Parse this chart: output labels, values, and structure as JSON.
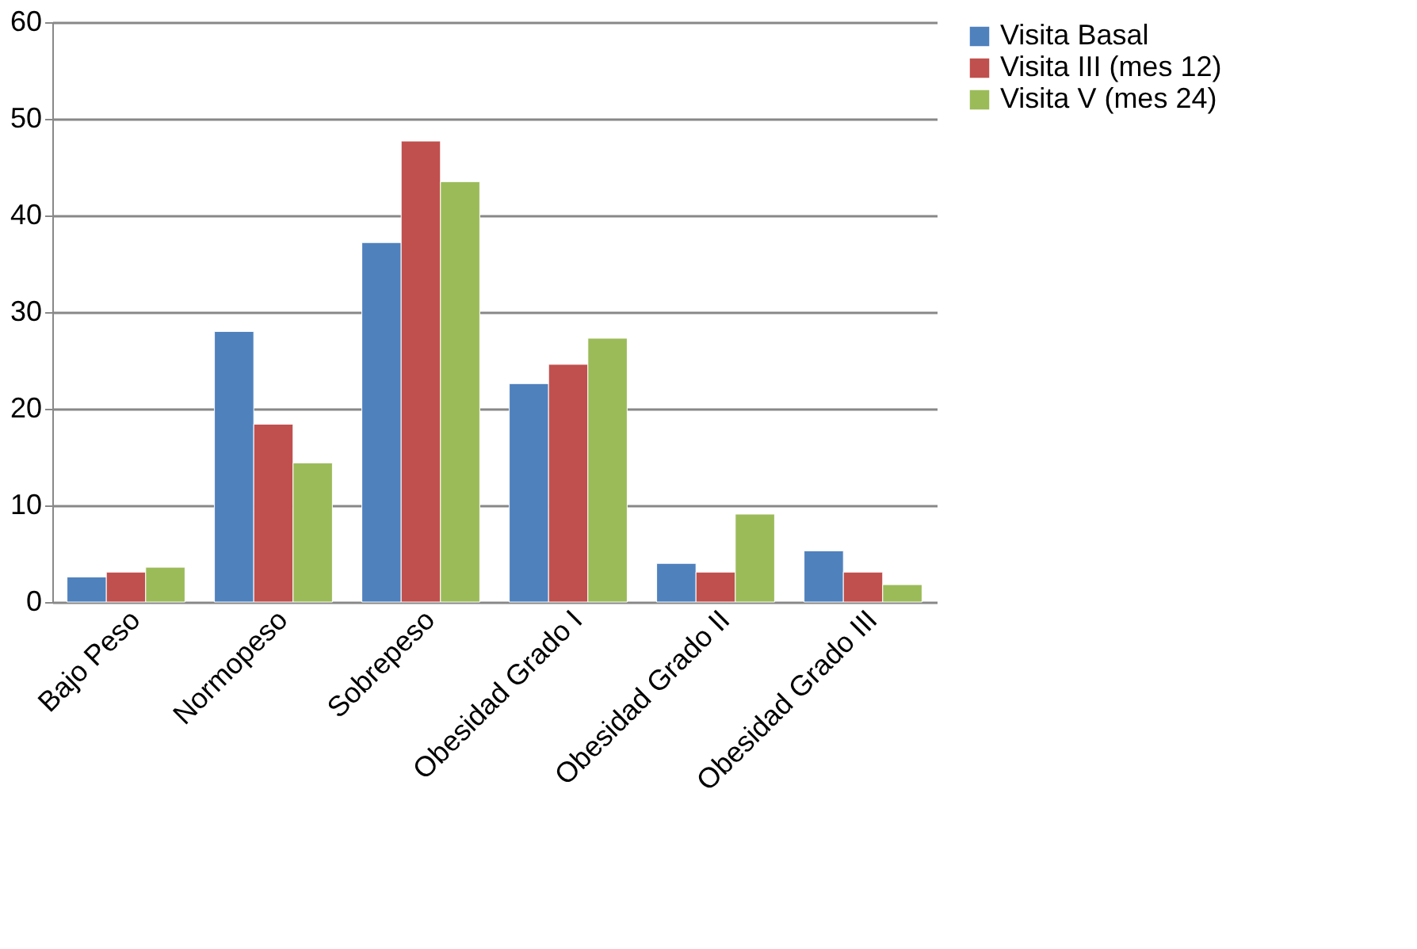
{
  "chart_data": {
    "type": "bar",
    "categories": [
      "Bajo Peso",
      "Normopeso",
      "Sobrepeso",
      "Obesidad Grado I",
      "Obesidad Grado II",
      "Obesidad Grado III"
    ],
    "series": [
      {
        "name": "Visita Basal",
        "color": "#4f81bd",
        "values": [
          2.6,
          28,
          37.2,
          22.6,
          4.0,
          5.3
        ]
      },
      {
        "name": "Visita III (mes 12)",
        "color": "#c0504d",
        "values": [
          3.1,
          18.4,
          47.7,
          24.6,
          3.1,
          3.1
        ]
      },
      {
        "name": "Visita V (mes 24)",
        "color": "#9bbb59",
        "values": [
          3.6,
          14.4,
          43.5,
          27.3,
          9.1,
          1.8
        ]
      }
    ],
    "ylim": [
      0,
      60
    ],
    "yticks": [
      0,
      10,
      20,
      30,
      40,
      50,
      60
    ],
    "grid": "y",
    "legend": "right"
  }
}
